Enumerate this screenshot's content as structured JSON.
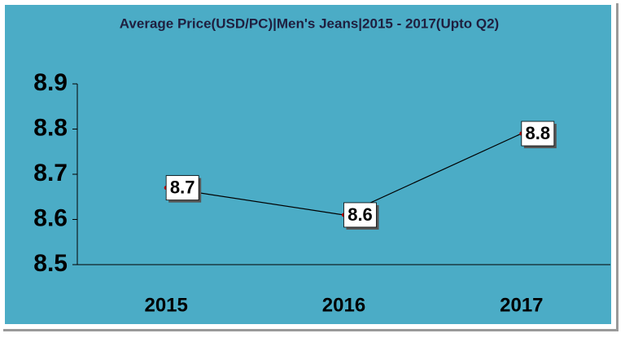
{
  "chart_data": {
    "type": "line",
    "title": "Average Price(USD/PC)|Men's Jeans|2015 - 2017(Upto Q2)",
    "categories": [
      "2015",
      "2016",
      "2017"
    ],
    "values": [
      8.67,
      8.61,
      8.79
    ],
    "value_labels": [
      "8.7",
      "8.6",
      "8.8"
    ],
    "color": "#000000",
    "marker_color": "#c00000",
    "ylim": [
      8.5,
      8.9
    ],
    "yticks": [
      8.5,
      8.6,
      8.7,
      8.8,
      8.9
    ],
    "grid": false
  }
}
